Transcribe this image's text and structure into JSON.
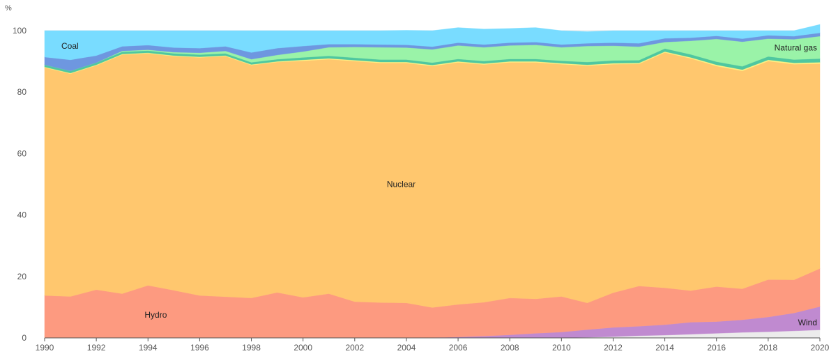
{
  "chart_data": {
    "type": "area",
    "stacked": true,
    "y_unit": "%",
    "xlim": [
      1990,
      2020
    ],
    "ylim": [
      0,
      100
    ],
    "grid": "horizontal",
    "x": [
      1990,
      1991,
      1992,
      1993,
      1994,
      1995,
      1996,
      1997,
      1998,
      1999,
      2000,
      2001,
      2002,
      2003,
      2004,
      2005,
      2006,
      2007,
      2008,
      2009,
      2010,
      2011,
      2012,
      2013,
      2014,
      2015,
      2016,
      2017,
      2018,
      2019,
      2020
    ],
    "x_ticks": [
      1990,
      1992,
      1994,
      1996,
      1998,
      2000,
      2002,
      2004,
      2006,
      2008,
      2010,
      2012,
      2014,
      2016,
      2018,
      2020
    ],
    "y_ticks": [
      0,
      20,
      40,
      60,
      80,
      100
    ],
    "series": [
      {
        "name": "",
        "color": "#ececec",
        "values": [
          0,
          0,
          0,
          0,
          0,
          0,
          0,
          0,
          0,
          0,
          0,
          0,
          0,
          0,
          0,
          0,
          0,
          0,
          0,
          0,
          0,
          0.2,
          0.4,
          0.7,
          0.9,
          1.2,
          1.5,
          1.8,
          2.0,
          2.3,
          2.6
        ]
      },
      {
        "name": "Wind",
        "color": "#c08ad0",
        "values": [
          0,
          0,
          0,
          0,
          0,
          0,
          0,
          0,
          0,
          0,
          0,
          0,
          0,
          0,
          0,
          0.1,
          0.3,
          0.6,
          1.0,
          1.5,
          1.9,
          2.5,
          3.0,
          3.1,
          3.4,
          3.9,
          3.8,
          4.1,
          4.8,
          5.8,
          7.6
        ]
      },
      {
        "name": "Hydro",
        "color": "#fd9a80",
        "values": [
          13.8,
          13.5,
          15.7,
          14.4,
          17.1,
          15.5,
          13.8,
          13.4,
          13.0,
          14.8,
          13.2,
          14.4,
          11.8,
          11.5,
          11.4,
          9.8,
          10.6,
          11.0,
          12.0,
          11.2,
          11.6,
          8.7,
          11.3,
          13.1,
          12.0,
          10.3,
          11.4,
          10.1,
          12.2,
          10.8,
          12.4
        ]
      },
      {
        "name": "Nuclear",
        "color": "#ffc76e",
        "values": [
          74.2,
          72.5,
          73.0,
          77.8,
          75.5,
          76.2,
          77.5,
          78.3,
          75.8,
          75.0,
          77.0,
          76.3,
          78.3,
          78.0,
          78.1,
          78.6,
          78.8,
          77.4,
          76.7,
          77.0,
          75.6,
          77.2,
          74.4,
          72.3,
          76.6,
          75.6,
          71.8,
          70.9,
          71.1,
          70.2,
          66.7
        ]
      },
      {
        "name": "",
        "color": "#fff282",
        "values": [
          0.2,
          0.2,
          0.2,
          0.2,
          0.2,
          0.2,
          0.2,
          0.2,
          0.2,
          0.2,
          0.3,
          0.3,
          0.3,
          0.3,
          0.3,
          0.3,
          0.3,
          0.3,
          0.3,
          0.3,
          0.3,
          0.3,
          0.3,
          0.3,
          0.3,
          0.3,
          0.4,
          0.4,
          0.4,
          0.4,
          0.4
        ]
      },
      {
        "name": "",
        "color": "#4fc7a0",
        "values": [
          0.7,
          0.7,
          0.7,
          0.7,
          0.7,
          0.7,
          0.7,
          0.7,
          0.7,
          0.7,
          0.8,
          0.8,
          0.8,
          0.8,
          0.8,
          0.8,
          0.8,
          0.8,
          0.8,
          0.8,
          0.8,
          0.9,
          0.9,
          0.9,
          1.0,
          1.0,
          1.0,
          1.1,
          1.1,
          1.1,
          1.2
        ]
      },
      {
        "name": "Natural gas",
        "color": "#9af3a8",
        "values": [
          0,
          0,
          0,
          0.3,
          0.3,
          0.4,
          0.6,
          0.8,
          1.0,
          1.4,
          1.9,
          2.8,
          3.5,
          4.0,
          3.9,
          4.3,
          4.4,
          4.5,
          4.4,
          4.6,
          4.4,
          5.2,
          4.8,
          4.4,
          2.1,
          4.4,
          7.4,
          8.0,
          5.8,
          6.6,
          7.3
        ]
      },
      {
        "name": "",
        "color": "#6e97e0",
        "values": [
          2.5,
          3.6,
          2.3,
          1.5,
          1.5,
          1.5,
          1.5,
          1.5,
          2.2,
          2.2,
          1.8,
          1.0,
          0.9,
          0.9,
          0.9,
          0.9,
          0.9,
          0.9,
          0.9,
          0.9,
          0.9,
          0.9,
          1.0,
          1.1,
          1.2,
          1.0,
          1.0,
          1.0,
          1.1,
          1.0,
          1.1
        ]
      },
      {
        "name": "Coal",
        "color": "#79dcff",
        "values": [
          8.6,
          9.5,
          8.1,
          5.1,
          4.7,
          5.5,
          5.7,
          5.1,
          7.1,
          5.7,
          5.0,
          4.4,
          4.4,
          4.5,
          4.7,
          5.2,
          4.9,
          5.0,
          4.6,
          4.7,
          4.5,
          3.8,
          3.9,
          4.1,
          2.5,
          2.3,
          1.7,
          2.6,
          1.5,
          1.8,
          2.7
        ]
      }
    ],
    "annotations": [
      {
        "text": "Coal",
        "x": 1991,
        "y": 95
      },
      {
        "text": "Natural gas",
        "x": 2019,
        "y": 94.5
      },
      {
        "text": "Nuclear",
        "x": 2003.8,
        "y": 50
      },
      {
        "text": "Hydro",
        "x": 1994.3,
        "y": 7.5
      },
      {
        "text": "Wind",
        "x": 2019.5,
        "y": 5
      }
    ]
  }
}
